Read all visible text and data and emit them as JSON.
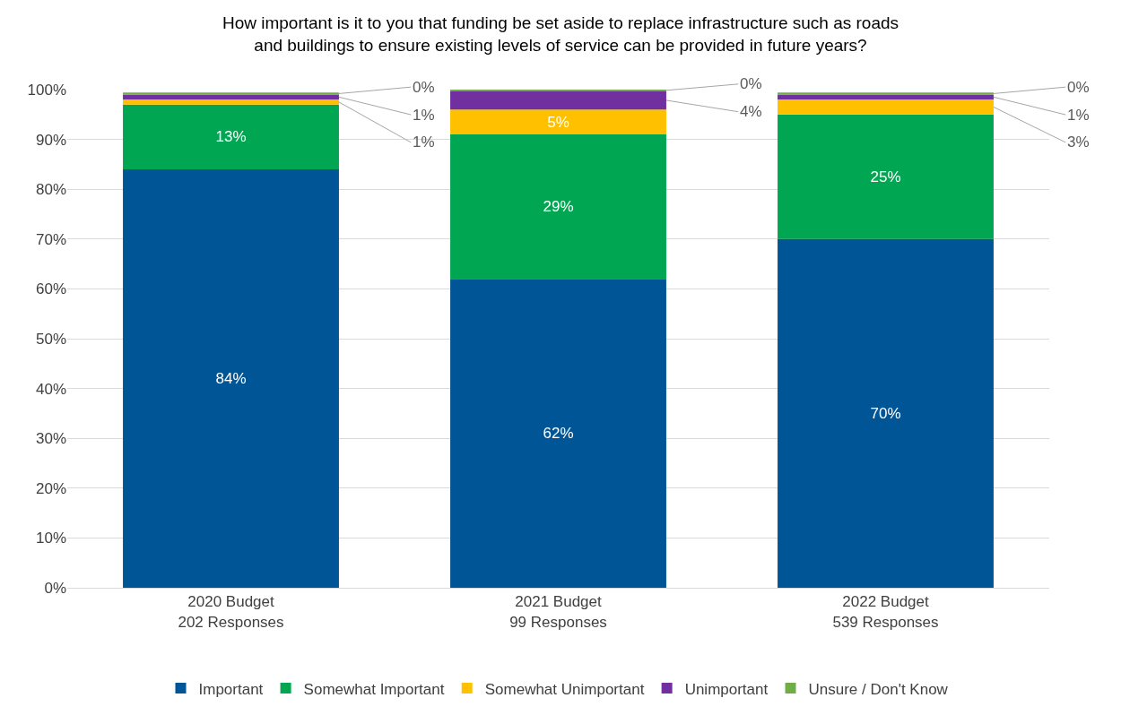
{
  "chart_data": {
    "type": "bar",
    "stacked": true,
    "title": "How important is it to you that funding be set aside to replace infrastructure such as roads\nand buildings to ensure existing levels of service can be provided in future years?",
    "categories": [
      "2020 Budget\n202 Responses",
      "2021 Budget\n99 Responses",
      "2022 Budget\n539 Responses"
    ],
    "series": [
      {
        "name": "Important",
        "color": "#005596",
        "values": [
          84,
          62,
          70
        ],
        "value_labels": [
          "84%",
          "62%",
          "70%"
        ]
      },
      {
        "name": "Somewhat Important",
        "color": "#00a651",
        "values": [
          13,
          29,
          25
        ],
        "value_labels": [
          "13%",
          "29%",
          "25%"
        ]
      },
      {
        "name": "Somewhat Unimportant",
        "color": "#ffc000",
        "values": [
          1,
          5,
          3
        ],
        "value_labels": [
          "1%",
          "5%",
          "3%"
        ]
      },
      {
        "name": "Unimportant",
        "color": "#7030a0",
        "values": [
          1,
          3.7,
          1
        ],
        "value_labels": [
          "1%",
          "4%",
          "1%"
        ]
      },
      {
        "name": "Unsure / Don't Know",
        "color": "#70ad47",
        "values": [
          0.4,
          0.3,
          0.4
        ],
        "value_labels": [
          "0%",
          "0%",
          "0%"
        ]
      }
    ],
    "ylim": [
      0,
      100
    ],
    "yticks": [
      {
        "value": 0,
        "label": "0%"
      },
      {
        "value": 10,
        "label": "10%"
      },
      {
        "value": 20,
        "label": "20%"
      },
      {
        "value": 30,
        "label": "30%"
      },
      {
        "value": 40,
        "label": "40%"
      },
      {
        "value": 50,
        "label": "50%"
      },
      {
        "value": 60,
        "label": "60%"
      },
      {
        "value": 70,
        "label": "70%"
      },
      {
        "value": 80,
        "label": "80%"
      },
      {
        "value": 90,
        "label": "90%"
      },
      {
        "value": 100,
        "label": "100%"
      }
    ],
    "grid": "y",
    "legend": "bottom"
  }
}
